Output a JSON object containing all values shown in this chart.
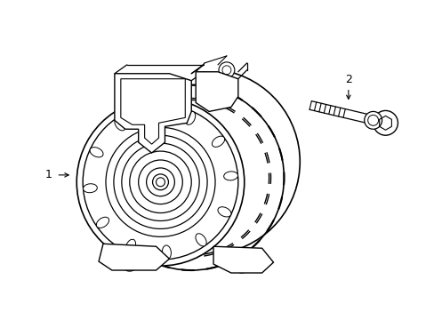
{
  "bg_color": "#ffffff",
  "line_color": "#000000",
  "line_width": 1.0,
  "fig_width": 4.89,
  "fig_height": 3.6,
  "label1": "1",
  "label2": "2"
}
